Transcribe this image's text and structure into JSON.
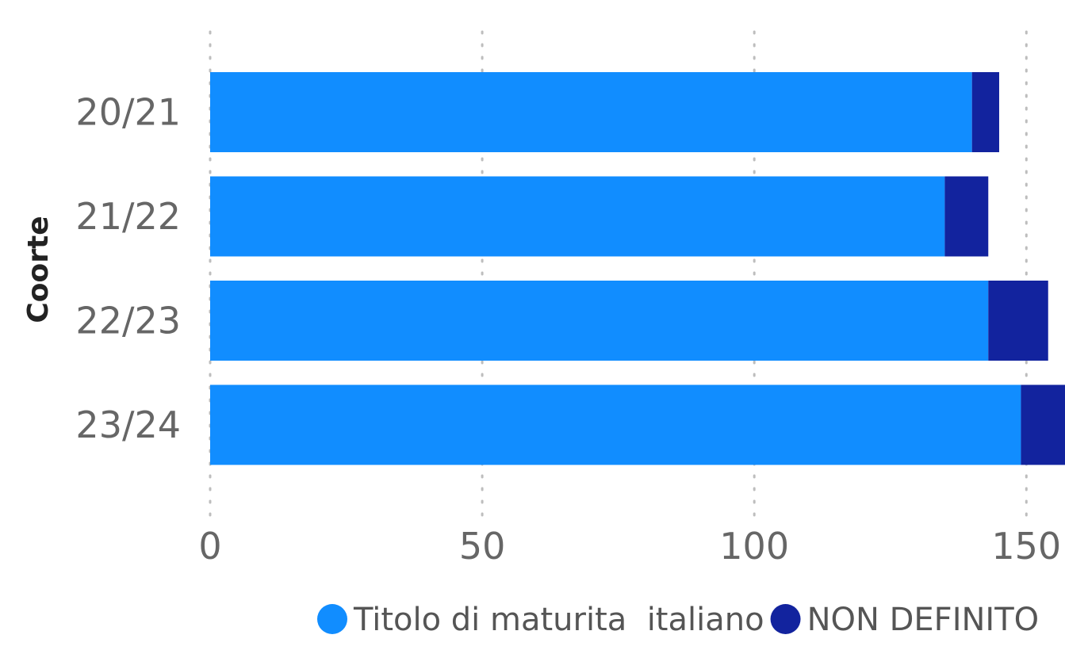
{
  "chart_data": {
    "type": "bar",
    "orientation": "horizontal",
    "stacked": true,
    "categories": [
      "20/21",
      "21/22",
      "22/23",
      "23/24"
    ],
    "series": [
      {
        "name": "Titolo di maturita  italiano",
        "color": "#118DFF",
        "values": [
          140,
          135,
          143,
          149
        ]
      },
      {
        "name": "NON DEFINITO",
        "color": "#12239E",
        "values": [
          5,
          8,
          11,
          9
        ]
      }
    ],
    "xlabel": "",
    "ylabel": "Coorte",
    "x_ticks": [
      0,
      50,
      100,
      150
    ],
    "xlim": [
      0,
      157
    ],
    "grid": true,
    "legend_position": "bottom"
  }
}
